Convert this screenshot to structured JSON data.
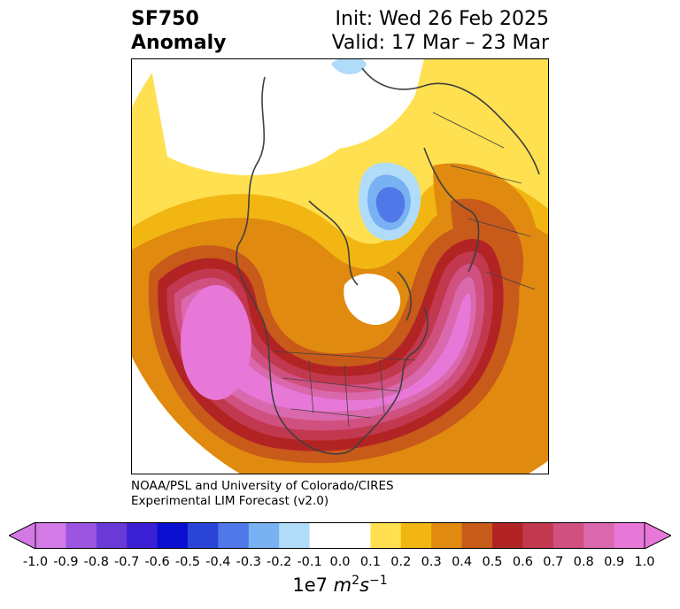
{
  "header": {
    "variable": "SF750",
    "kind": "Anomaly",
    "init": "Init: Wed 26 Feb 2025",
    "valid": "Valid: 17 Mar – 23 Mar"
  },
  "credit": {
    "line1": "NOAA/PSL and University of Colorado/CIRES",
    "line2": "Experimental LIM Forecast (v2.0)"
  },
  "colorbar": {
    "ticks": [
      "-1.0",
      "-0.9",
      "-0.8",
      "-0.7",
      "-0.6",
      "-0.5",
      "-0.4",
      "-0.3",
      "-0.2",
      "-0.1",
      "0.0",
      "0.1",
      "0.2",
      "0.3",
      "0.4",
      "0.5",
      "0.6",
      "0.7",
      "0.8",
      "0.9",
      "1.0"
    ],
    "colors": [
      "#d27ae6",
      "#9b55e0",
      "#6a3ad8",
      "#3a1fd4",
      "#0a0fd0",
      "#2a44d8",
      "#5078e8",
      "#78b2f2",
      "#b0dcfa",
      "#ffffff",
      "#ffffff",
      "#ffe050",
      "#f2b612",
      "#e08a10",
      "#c85a1a",
      "#b22424",
      "#c2384e",
      "#d05080",
      "#da68ac",
      "#e878d8"
    ],
    "unit_base": "1e7 ",
    "unit_m": "m",
    "unit_m_exp": "2",
    "unit_s": "s",
    "unit_s_exp": "−1"
  }
}
